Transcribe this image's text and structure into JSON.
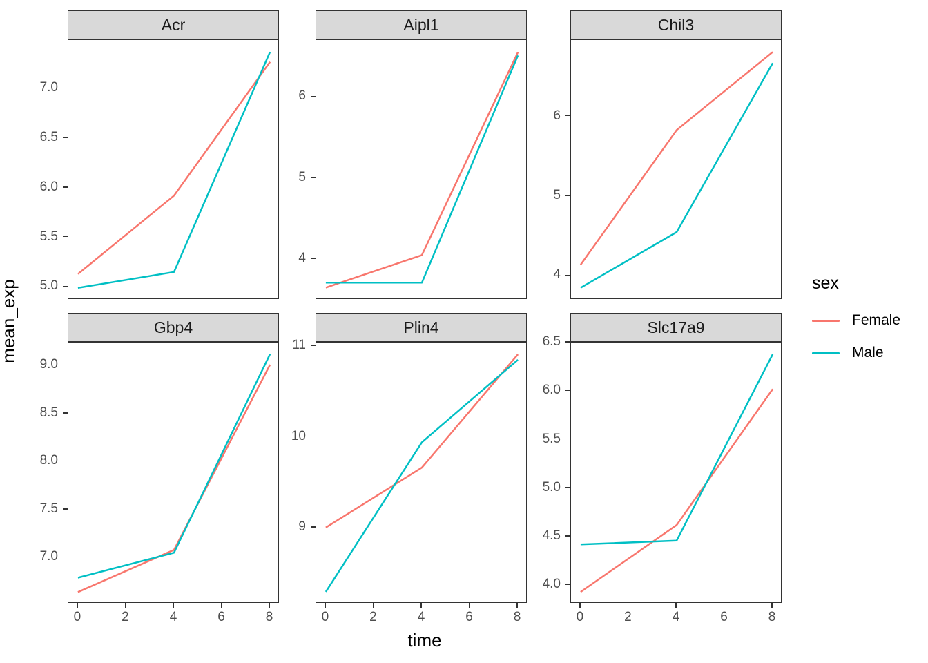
{
  "chart_data": {
    "type": "line",
    "title": "",
    "xlabel": "time",
    "ylabel": "mean_exp",
    "x": [
      0,
      4,
      8
    ],
    "x_ticks": [
      0,
      2,
      4,
      6,
      8
    ],
    "x_tick_labels": [
      "0",
      "2",
      "4",
      "6",
      "8"
    ],
    "xlim": [
      -0.4,
      8.4
    ],
    "grid": false,
    "legend": {
      "title": "sex",
      "position": "right",
      "entries": [
        {
          "name": "Female",
          "color": "#F8766D"
        },
        {
          "name": "Male",
          "color": "#00BFC4"
        }
      ]
    },
    "facets": [
      {
        "title": "Acr",
        "ylim": [
          4.87,
          7.49
        ],
        "y_ticks": [
          5.0,
          5.5,
          6.0,
          6.5,
          7.0
        ],
        "y_tick_labels": [
          "5.0",
          "5.5",
          "6.0",
          "6.5",
          "7.0"
        ],
        "series": [
          {
            "name": "Female",
            "values": [
              5.13,
              5.92,
              7.27
            ]
          },
          {
            "name": "Male",
            "values": [
              4.99,
              5.15,
              7.37
            ]
          }
        ]
      },
      {
        "title": "Aipl1",
        "ylim": [
          3.5,
          6.7
        ],
        "y_ticks": [
          4,
          5,
          6
        ],
        "y_tick_labels": [
          "4",
          "5",
          "6"
        ],
        "series": [
          {
            "name": "Female",
            "values": [
              3.65,
              4.05,
              6.55
            ]
          },
          {
            "name": "Male",
            "values": [
              3.71,
              3.71,
              6.51
            ]
          }
        ]
      },
      {
        "title": "Chil3",
        "ylim": [
          3.7,
          6.96
        ],
        "y_ticks": [
          4,
          5,
          6
        ],
        "y_tick_labels": [
          "4",
          "5",
          "6"
        ],
        "series": [
          {
            "name": "Female",
            "values": [
              4.14,
              5.83,
              6.81
            ]
          },
          {
            "name": "Male",
            "values": [
              3.85,
              4.55,
              6.67
            ]
          }
        ]
      },
      {
        "title": "Gbp4",
        "ylim": [
          6.52,
          9.24
        ],
        "y_ticks": [
          7.0,
          7.5,
          8.0,
          8.5,
          9.0
        ],
        "y_tick_labels": [
          "7.0",
          "7.5",
          "8.0",
          "8.5",
          "9.0"
        ],
        "series": [
          {
            "name": "Female",
            "values": [
              6.64,
              7.08,
              9.01
            ]
          },
          {
            "name": "Male",
            "values": [
              6.79,
              7.05,
              9.12
            ]
          }
        ]
      },
      {
        "title": "Plin4",
        "ylim": [
          8.16,
          11.04
        ],
        "y_ticks": [
          9,
          10,
          11
        ],
        "y_tick_labels": [
          "9",
          "10",
          "11"
        ],
        "series": [
          {
            "name": "Female",
            "values": [
              9.0,
              9.66,
              10.91
            ]
          },
          {
            "name": "Male",
            "values": [
              8.29,
              9.94,
              10.85
            ]
          }
        ]
      },
      {
        "title": "Slc17a9",
        "ylim": [
          3.81,
          6.5
        ],
        "y_ticks": [
          4.0,
          4.5,
          5.0,
          5.5,
          6.0,
          6.5
        ],
        "y_tick_labels": [
          "4.0",
          "4.5",
          "5.0",
          "5.5",
          "6.0",
          "6.5"
        ],
        "series": [
          {
            "name": "Female",
            "values": [
              3.93,
              4.62,
              6.02
            ]
          },
          {
            "name": "Male",
            "values": [
              4.42,
              4.46,
              6.38
            ]
          }
        ]
      }
    ],
    "style": {
      "female_color": "#F8766D",
      "male_color": "#00BFC4",
      "strip_background": "#D9D9D9",
      "panel_border_color": "#333333",
      "tick_label_color": "#4D4D4D",
      "line_width": 2.5
    }
  }
}
